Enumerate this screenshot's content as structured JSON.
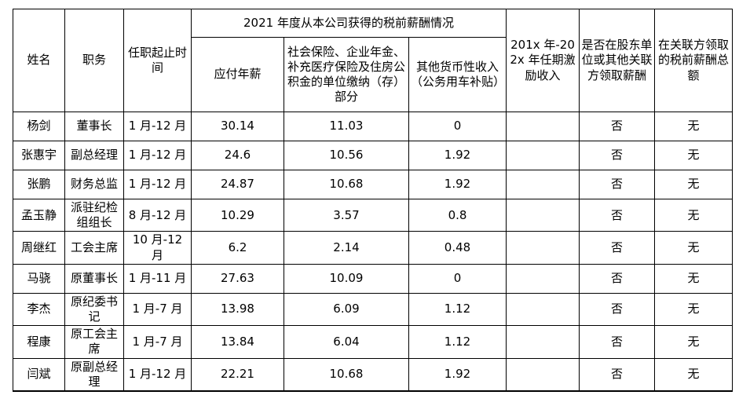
{
  "colors": {
    "border": "#000000",
    "background": "#ffffff",
    "text": "#000000"
  },
  "table": {
    "header": {
      "name": "姓名",
      "position": "职务",
      "term": "任职起止时间",
      "comp_group": "2021 年度从本公司获得的税前薪酬情况",
      "salary": "应付年薪",
      "insurance": "社会保险、企业年金、补充医疗保险及住房公积金的单位缴纳（存）部分",
      "other_income": "其他货币性收入（公务用车补贴）",
      "incentive": "201x 年-202x 年任期激励收入",
      "related_pay": "是否在股东单位或其他关联方领取薪酬",
      "related_total": "在关联方领取的税前薪酬总额"
    },
    "rows": [
      {
        "name": "杨剑",
        "position": "董事长",
        "term": "1 月-12 月",
        "salary": "30.14",
        "insurance": "11.03",
        "other": "0",
        "incentive": "",
        "related": "否",
        "related_total": "无"
      },
      {
        "name": "张惠宇",
        "position": "副总经理",
        "term": "1 月-12 月",
        "salary": "24.6",
        "insurance": "10.56",
        "other": "1.92",
        "incentive": "",
        "related": "否",
        "related_total": "无"
      },
      {
        "name": "张鹏",
        "position": "财务总监",
        "term": "1 月-12 月",
        "salary": "24.87",
        "insurance": "10.68",
        "other": "1.92",
        "incentive": "",
        "related": "否",
        "related_total": "无"
      },
      {
        "name": "孟玉静",
        "position": "派驻纪检组组长",
        "term": "8 月-12 月",
        "salary": "10.29",
        "insurance": "3.57",
        "other": "0.8",
        "incentive": "",
        "related": "否",
        "related_total": "无"
      },
      {
        "name": "周继红",
        "position": "工会主席",
        "term": "10 月-12 月",
        "salary": "6.2",
        "insurance": "2.14",
        "other": "0.48",
        "incentive": "",
        "related": "否",
        "related_total": "无"
      },
      {
        "name": "马骁",
        "position": "原董事长",
        "term": "1 月-11 月",
        "salary": "27.63",
        "insurance": "10.09",
        "other": "0",
        "incentive": "",
        "related": "否",
        "related_total": "无"
      },
      {
        "name": "李杰",
        "position": "原纪委书记",
        "term": "1 月-7 月",
        "salary": "13.98",
        "insurance": "6.09",
        "other": "1.12",
        "incentive": "",
        "related": "否",
        "related_total": "无"
      },
      {
        "name": "程康",
        "position": "原工会主席",
        "term": "1 月-7 月",
        "salary": "13.84",
        "insurance": "6.04",
        "other": "1.12",
        "incentive": "",
        "related": "否",
        "related_total": "无"
      },
      {
        "name": "闫斌",
        "position": "原副总经理",
        "term": "1 月-12 月",
        "salary": "22.21",
        "insurance": "10.68",
        "other": "1.92",
        "incentive": "",
        "related": "否",
        "related_total": "无"
      }
    ]
  }
}
